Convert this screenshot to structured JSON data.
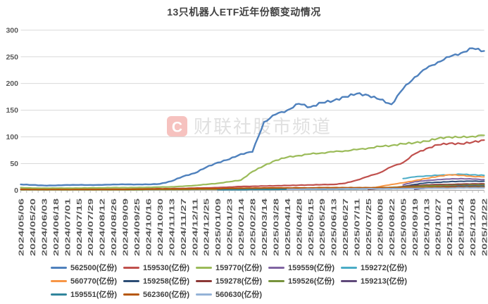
{
  "watermark": {
    "logo_letter": "C",
    "text": "财联社股市频道",
    "logo_color": "#E23B30"
  },
  "chart_data": {
    "type": "line",
    "title": "13只机器人ETF近年份额变动情况",
    "xlabel": "",
    "ylabel": "",
    "unit": "亿份",
    "ylim": [
      0,
      300
    ],
    "yticks": [
      0,
      50,
      100,
      150,
      200,
      250,
      300
    ],
    "grid": true,
    "legend_position": "bottom",
    "categories": [
      "2024/05/06",
      "2024/05/20",
      "2024/06/03",
      "2024/06/18",
      "2024/07/01",
      "2024/07/15",
      "2024/07/29",
      "2024/08/12",
      "2024/08/26",
      "2024/09/09",
      "2024/09/25",
      "2024/10/16",
      "2024/10/30",
      "2024/11/13",
      "2024/11/27",
      "2024/12/11",
      "2024/12/25",
      "2025/01/09",
      "2025/01/23",
      "2025/02/14",
      "2025/02/28",
      "2025/03/14",
      "2025/03/28",
      "2025/04/14",
      "2025/04/28",
      "2025/05/15",
      "2025/05/29",
      "2025/06/13",
      "2025/06/27",
      "2025/07/11",
      "2025/07/25",
      "2025/08/08",
      "2025/08/22",
      "2025/09/05",
      "2025/09/19",
      "2025/10/13",
      "2025/10/27",
      "2025/11/10",
      "2025/11/24",
      "2025/12/08",
      "2025/12/22"
    ],
    "series": [
      {
        "name": "562500(亿份)",
        "code": "562500",
        "color": "#4F81BD",
        "width": 2.4,
        "values": [
          11,
          10,
          9,
          9,
          10,
          10,
          10,
          10,
          11,
          11,
          11,
          11,
          12,
          17,
          26,
          32,
          43,
          52,
          58,
          68,
          72,
          128,
          142,
          150,
          162,
          156,
          164,
          168,
          175,
          181,
          178,
          170,
          161,
          190,
          212,
          228,
          240,
          250,
          257,
          266,
          261
        ]
      },
      {
        "name": "159530(亿份)",
        "code": "159530",
        "color": "#C0504D",
        "width": 2.2,
        "values": [
          2,
          2,
          2,
          2,
          2,
          2,
          2,
          2,
          2,
          2,
          2.5,
          3,
          3,
          3,
          3.5,
          4,
          4.5,
          5,
          6,
          7,
          7.5,
          8,
          8.5,
          9,
          9.5,
          10,
          10.5,
          11,
          13,
          19,
          26,
          33,
          44,
          52,
          68,
          78,
          85,
          88,
          87,
          90,
          94
        ]
      },
      {
        "name": "159770(亿份)",
        "code": "159770",
        "color": "#9BBB59",
        "width": 2.2,
        "values": [
          5,
          4,
          4,
          4,
          4,
          4,
          4.5,
          4.5,
          5,
          5,
          5,
          5.5,
          6,
          6.5,
          7.5,
          9,
          11,
          13,
          16,
          19,
          35,
          46,
          56,
          62,
          65,
          68,
          70,
          72,
          74,
          76,
          79,
          82,
          84,
          87,
          89,
          92,
          97,
          100,
          99,
          101,
          103
        ]
      },
      {
        "name": "159559(亿份)",
        "code": "159559",
        "color": "#8064A2",
        "width": 2,
        "values": [
          null,
          null,
          null,
          null,
          null,
          null,
          null,
          null,
          null,
          null,
          null,
          null,
          null,
          null,
          null,
          null,
          null,
          null,
          null,
          null,
          null,
          null,
          null,
          null,
          null,
          null,
          null,
          null,
          null,
          null,
          null,
          null,
          null,
          10,
          16,
          18,
          20,
          21,
          22,
          21,
          20
        ]
      },
      {
        "name": "159272(亿份)",
        "code": "159272",
        "color": "#4BACC6",
        "width": 2,
        "values": [
          null,
          null,
          null,
          null,
          null,
          null,
          null,
          null,
          null,
          null,
          null,
          null,
          null,
          null,
          null,
          null,
          null,
          null,
          null,
          null,
          null,
          null,
          null,
          null,
          null,
          null,
          null,
          null,
          null,
          null,
          null,
          null,
          null,
          22,
          25,
          27,
          28,
          29,
          30,
          29,
          28
        ]
      },
      {
        "name": "560770(亿份)",
        "code": "560770",
        "color": "#F79646",
        "width": 2,
        "values": [
          null,
          null,
          null,
          null,
          null,
          null,
          null,
          null,
          null,
          null,
          null,
          null,
          null,
          null,
          null,
          null,
          null,
          null,
          null,
          null,
          null,
          null,
          null,
          null,
          null,
          null,
          null,
          null,
          null,
          null,
          2,
          7,
          11,
          14,
          18,
          22,
          26,
          29,
          28,
          26,
          25
        ]
      },
      {
        "name": "159258(亿份)",
        "code": "159258",
        "color": "#2C4D75",
        "width": 2,
        "values": [
          null,
          null,
          null,
          null,
          null,
          null,
          null,
          null,
          null,
          null,
          null,
          null,
          null,
          null,
          null,
          null,
          null,
          null,
          null,
          null,
          null,
          null,
          null,
          null,
          null,
          null,
          null,
          null,
          null,
          null,
          null,
          null,
          3,
          7,
          11,
          14,
          15,
          16,
          17,
          17,
          17
        ]
      },
      {
        "name": "159278(亿份)",
        "code": "159278",
        "color": "#8C3836",
        "width": 2,
        "values": [
          null,
          null,
          null,
          null,
          null,
          null,
          null,
          null,
          null,
          null,
          null,
          null,
          null,
          null,
          null,
          null,
          null,
          null,
          null,
          null,
          null,
          null,
          null,
          null,
          null,
          null,
          null,
          null,
          null,
          null,
          1.5,
          3,
          5,
          7,
          8.5,
          10,
          10.5,
          11,
          11.5,
          12,
          12
        ]
      },
      {
        "name": "159526(亿份)",
        "code": "159526",
        "color": "#77933C",
        "width": 2,
        "values": [
          1,
          1,
          1,
          1,
          1,
          1,
          1,
          1,
          1,
          1,
          1,
          1.5,
          1.5,
          1.5,
          1.5,
          2,
          2,
          2,
          2,
          2.5,
          2.5,
          3,
          3,
          3,
          3,
          3,
          3.5,
          3.5,
          4,
          4,
          4.5,
          5,
          5.5,
          6,
          7,
          8,
          8.5,
          9,
          9.5,
          10,
          10
        ]
      },
      {
        "name": "159213(亿份)",
        "code": "159213",
        "color": "#5F497A",
        "width": 2,
        "values": [
          null,
          null,
          null,
          null,
          null,
          null,
          null,
          null,
          null,
          null,
          null,
          null,
          null,
          null,
          null,
          null,
          null,
          null,
          null,
          null,
          null,
          null,
          null,
          null,
          null,
          null,
          null,
          null,
          null,
          null,
          null,
          null,
          null,
          null,
          2,
          4,
          6,
          7,
          8,
          8,
          8
        ]
      },
      {
        "name": "159551(亿份)",
        "code": "159551",
        "color": "#31859C",
        "width": 2,
        "values": [
          null,
          null,
          null,
          null,
          null,
          null,
          null,
          null,
          null,
          null,
          null,
          null,
          null,
          null,
          null,
          null,
          null,
          1,
          1,
          1,
          1.5,
          1.5,
          1.5,
          2,
          2,
          2,
          2,
          2,
          2.5,
          2.5,
          3,
          3,
          3,
          3.5,
          4,
          5,
          5.5,
          6,
          6.5,
          7,
          7
        ]
      },
      {
        "name": "562360(亿份)",
        "code": "562360",
        "color": "#B65708",
        "width": 2,
        "values": [
          1.5,
          1.5,
          1.5,
          1.5,
          1.5,
          1.5,
          1.5,
          1.5,
          1.5,
          1.5,
          2,
          2,
          2.5,
          2.5,
          2.5,
          3,
          3,
          3,
          3.5,
          4,
          4,
          4.5,
          4.5,
          4.5,
          4.5,
          4.5,
          5,
          5,
          5,
          5,
          5,
          5,
          5,
          5.5,
          5.5,
          5.5,
          6,
          6,
          6,
          6,
          6
        ]
      },
      {
        "name": "560630(亿份)",
        "code": "560630",
        "color": "#95B3D7",
        "width": 2,
        "values": [
          null,
          null,
          null,
          null,
          null,
          null,
          null,
          null,
          null,
          null,
          null,
          null,
          null,
          null,
          null,
          null,
          null,
          null,
          null,
          null,
          null,
          null,
          null,
          2,
          2,
          2.5,
          2.5,
          2.5,
          3,
          3,
          3,
          3,
          3,
          3.5,
          3.5,
          4,
          4,
          4,
          4.5,
          4.5,
          4.5
        ]
      }
    ]
  }
}
